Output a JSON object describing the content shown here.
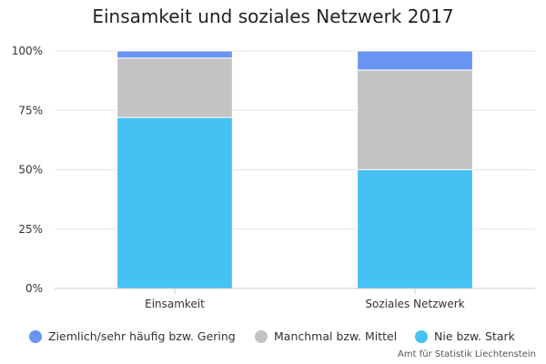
{
  "chart_data": {
    "type": "bar",
    "stacked": true,
    "percent": true,
    "title": "Einsamkeit und soziales Netzwerk 2017",
    "categories": [
      "Einsamkeit",
      "Soziales Netzwerk"
    ],
    "series": [
      {
        "name": "Nie bzw. Stark",
        "values": [
          72,
          50
        ],
        "color": "#45c1f2"
      },
      {
        "name": "Manchmal bzw. Mittel",
        "values": [
          25,
          42
        ],
        "color": "#c3c3c3"
      },
      {
        "name": "Ziemlich/sehr häufig bzw. Gering",
        "values": [
          3,
          8
        ],
        "color": "#6a94f4"
      }
    ],
    "y_ticks": [
      "0%",
      "25%",
      "50%",
      "75%",
      "100%"
    ],
    "ylim": [
      0,
      100
    ],
    "grid": true,
    "legend_position": "bottom"
  },
  "legend": {
    "items": [
      {
        "label": "Ziemlich/sehr häufig bzw. Gering",
        "color": "#6a94f4"
      },
      {
        "label": "Manchmal bzw. Mittel",
        "color": "#c3c3c3"
      },
      {
        "label": "Nie bzw. Stark",
        "color": "#45c1f2"
      }
    ]
  },
  "credit": "Amt für Statistik Liechtenstein"
}
